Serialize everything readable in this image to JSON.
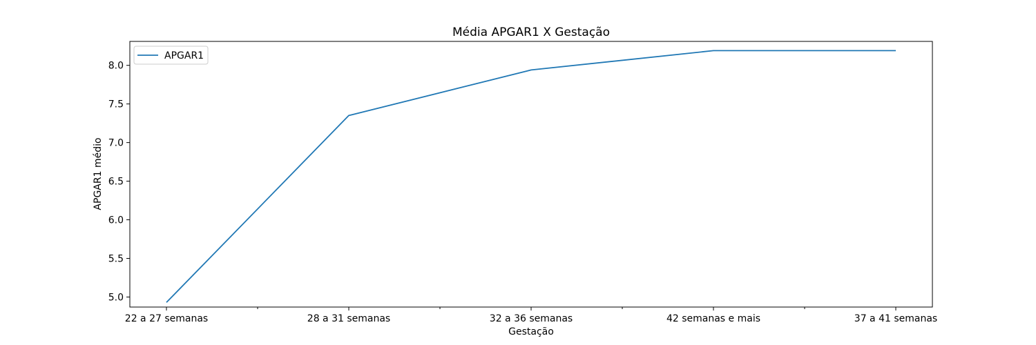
{
  "chart_data": {
    "type": "line",
    "title": "Média APGAR1 X Gestação",
    "xlabel": "Gestação",
    "ylabel": "APGAR1 médio",
    "categories": [
      "22 a 27 semanas",
      "28 a 31 semanas",
      "32 a 36 semanas",
      "42 semanas e mais",
      "37 a 41 semanas"
    ],
    "series": [
      {
        "name": "APGAR1",
        "color": "#1f77b4",
        "values": [
          4.93,
          7.35,
          7.94,
          8.19,
          8.19
        ]
      }
    ],
    "ylim": [
      4.87,
      8.31
    ],
    "yticks": [
      5.0,
      5.5,
      6.0,
      6.5,
      7.0,
      7.5,
      8.0
    ],
    "ytick_labels": [
      "5.0",
      "5.5",
      "6.0",
      "6.5",
      "7.0",
      "7.5",
      "8.0"
    ],
    "grid": false,
    "legend_position": "upper-left"
  }
}
